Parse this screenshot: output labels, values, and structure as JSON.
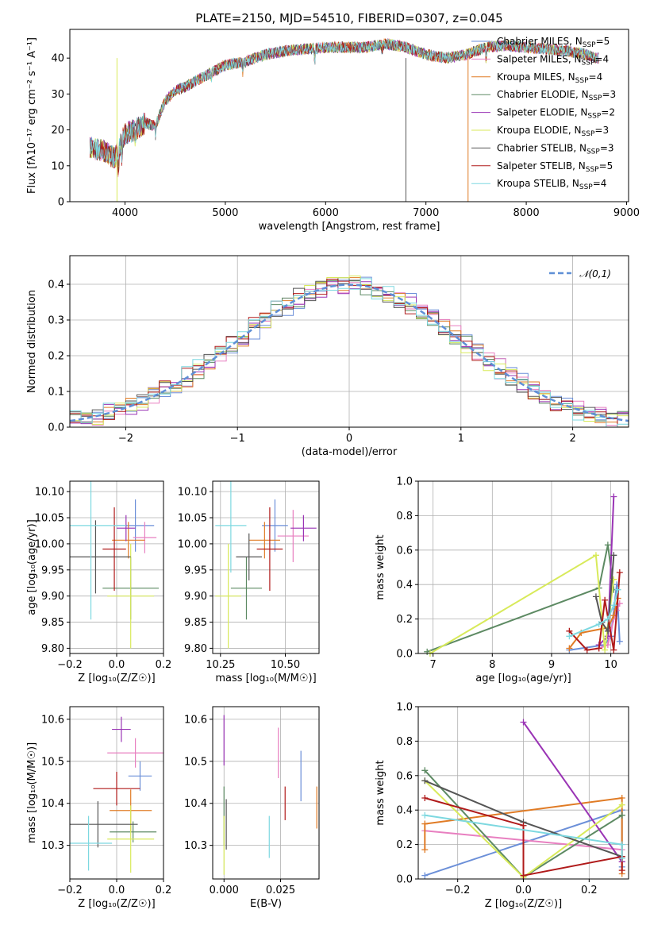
{
  "figure_title": "PLATE=2150, MJD=54510, FIBERID=0307, z=0.045",
  "series_styles": [
    {
      "name": "Chabrier MILES",
      "nssp": "5",
      "color": "#6b8fd8"
    },
    {
      "name": "Salpeter MILES",
      "nssp": "4",
      "color": "#e87fc0"
    },
    {
      "name": "Kroupa MILES",
      "nssp": "4",
      "color": "#e07b25"
    },
    {
      "name": "Chabrier ELODIE",
      "nssp": "3",
      "color": "#5d8a63"
    },
    {
      "name": "Salpeter ELODIE",
      "nssp": "2",
      "color": "#9a34b5"
    },
    {
      "name": "Kroupa ELODIE",
      "nssp": "3",
      "color": "#d8ea5a"
    },
    {
      "name": "Chabrier STELIB",
      "nssp": "3",
      "color": "#555555"
    },
    {
      "name": "Salpeter STELIB",
      "nssp": "5",
      "color": "#b01a1a"
    },
    {
      "name": "Kroupa STELIB",
      "nssp": "4",
      "color": "#7dd8e0"
    }
  ],
  "chart_data": [
    {
      "type": "line",
      "title": "PLATE=2150, MJD=54510, FIBERID=0307, z=0.045",
      "xlabel": "wavelength [Angstrom, rest frame]",
      "ylabel": "Flux [fλ10⁻¹⁷ erg cm⁻² s⁻¹ A⁻¹]",
      "xlim": [
        3450,
        9020
      ],
      "ylim": [
        0,
        48
      ],
      "xticks": [
        "4000",
        "5000",
        "6000",
        "7000",
        "8000",
        "9000"
      ],
      "yticks": [
        "0",
        "10",
        "20",
        "30",
        "40"
      ],
      "legend_position": "top-right",
      "legend": [
        "Chabrier MILES, NSSP=5",
        "Salpeter MILES, NSSP=4",
        "Kroupa MILES, NSSP=4",
        "Chabrier ELODIE, NSSP=3",
        "Salpeter ELODIE, NSSP=2",
        "Kroupa ELODIE, NSSP=3",
        "Chabrier STELIB, NSSP=3",
        "Salpeter STELIB, NSSP=5",
        "Kroupa STELIB, NSSP=4"
      ],
      "continuum": {
        "x": [
          3650,
          3800,
          3900,
          4000,
          4100,
          4200,
          4300,
          4400,
          4500,
          4600,
          4800,
          5000,
          5200,
          5400,
          5600,
          5800,
          6000,
          6200,
          6400,
          6600,
          6800,
          7000,
          7200,
          7400,
          7600,
          7800,
          8000,
          8200,
          8400,
          8600,
          8700
        ],
        "y": [
          15,
          14,
          12,
          19,
          20,
          22,
          21,
          28,
          31,
          32,
          35,
          38,
          39,
          41,
          42,
          42.5,
          43,
          43,
          43,
          44,
          43,
          41,
          40,
          41,
          43,
          43.5,
          43,
          42.5,
          42,
          41,
          40
        ]
      }
    },
    {
      "type": "line",
      "xlabel": "(data-model)/error",
      "ylabel": "Normed distribution",
      "xlim": [
        -2.5,
        2.5
      ],
      "ylim": [
        0,
        0.48
      ],
      "xticks": [
        "−2",
        "−1",
        "0",
        "1",
        "2"
      ],
      "yticks": [
        "0.0",
        "0.1",
        "0.2",
        "0.3",
        "0.4"
      ],
      "grid": true,
      "legend_position": "top-right",
      "legend": [
        "𝒩(0,1)"
      ],
      "gaussian": {
        "mean": 0,
        "sigma": 1
      }
    },
    {
      "type": "scatter",
      "xlabel": "Z [log₁₀(Z/Z☉)]",
      "ylabel": "age  [log₁₀(age/yr)]",
      "xlim": [
        -0.2,
        0.2
      ],
      "ylim": [
        9.79,
        10.12
      ],
      "xticks": [
        "−0.2",
        "0.0",
        "0.2"
      ],
      "yticks": [
        "9.80",
        "9.85",
        "9.90",
        "9.95",
        "10.00",
        "10.05",
        "10.10"
      ],
      "grid": true,
      "points": [
        {
          "x": 0.08,
          "y": 10.035,
          "xerr": 0.08,
          "yerr": 0.05
        },
        {
          "x": 0.12,
          "y": 10.012,
          "xerr": 0.05,
          "yerr": 0.03
        },
        {
          "x": 0.05,
          "y": 10.007,
          "xerr": 0.07,
          "yerr": 0.035
        },
        {
          "x": 0.06,
          "y": 9.915,
          "xerr": 0.12,
          "yerr": 0.06
        },
        {
          "x": 0.04,
          "y": 10.03,
          "xerr": 0.04,
          "yerr": 0.025
        },
        {
          "x": 0.06,
          "y": 9.9,
          "xerr": 0.1,
          "yerr": 0.1
        },
        {
          "x": -0.09,
          "y": 9.975,
          "xerr": 0.15,
          "yerr": 0.07
        },
        {
          "x": -0.01,
          "y": 9.99,
          "xerr": 0.05,
          "yerr": 0.08
        },
        {
          "x": -0.11,
          "y": 10.035,
          "xerr": 0.15,
          "yerr": 0.18
        }
      ]
    },
    {
      "type": "scatter",
      "xlabel": "mass [log₁₀(M/M☉)]",
      "xlim": [
        10.22,
        10.63
      ],
      "ylim": [
        9.79,
        10.12
      ],
      "xticks": [
        "10.25",
        "10.50"
      ],
      "yticks": [
        "9.80",
        "9.85",
        "9.90",
        "9.95",
        "10.00",
        "10.05",
        "10.10"
      ],
      "grid": true,
      "points": [
        {
          "x": 10.46,
          "y": 10.035,
          "xerr": 0.05,
          "yerr": 0.05
        },
        {
          "x": 10.53,
          "y": 10.015,
          "xerr": 0.06,
          "yerr": 0.05
        },
        {
          "x": 10.42,
          "y": 10.007,
          "xerr": 0.06,
          "yerr": 0.035
        },
        {
          "x": 10.35,
          "y": 9.915,
          "xerr": 0.06,
          "yerr": 0.06
        },
        {
          "x": 10.57,
          "y": 10.03,
          "xerr": 0.05,
          "yerr": 0.025
        },
        {
          "x": 10.28,
          "y": 9.9,
          "xerr": 0.05,
          "yerr": 0.1
        },
        {
          "x": 10.36,
          "y": 9.975,
          "xerr": 0.05,
          "yerr": 0.045
        },
        {
          "x": 10.44,
          "y": 9.99,
          "xerr": 0.05,
          "yerr": 0.08
        },
        {
          "x": 10.29,
          "y": 10.035,
          "xerr": 0.06,
          "yerr": 0.09
        }
      ]
    },
    {
      "type": "line",
      "xlabel": "age  [log₁₀(age/yr)]",
      "ylabel": "mass weight",
      "xlim": [
        6.75,
        10.3
      ],
      "ylim": [
        0,
        1.0
      ],
      "xticks": [
        "7",
        "8",
        "9",
        "10"
      ],
      "yticks": [
        "0.0",
        "0.2",
        "0.4",
        "0.6",
        "0.8",
        "1.0"
      ],
      "grid": true,
      "lines": [
        {
          "x": [
            9.3,
            9.9,
            10.0,
            10.1,
            10.15
          ],
          "y": [
            0.02,
            0.05,
            0.1,
            0.4,
            0.07
          ]
        },
        {
          "x": [
            9.8,
            9.95,
            10.05,
            10.1,
            10.15
          ],
          "y": [
            0.03,
            0.05,
            0.2,
            0.25,
            0.29
          ]
        },
        {
          "x": [
            9.3,
            9.5,
            9.95,
            10.05,
            10.12
          ],
          "y": [
            0.03,
            0.12,
            0.15,
            0.22,
            0.32
          ]
        },
        {
          "x": [
            6.9,
            9.8,
            9.95,
            10.05
          ],
          "y": [
            0.01,
            0.38,
            0.63,
            0.37
          ]
        },
        {
          "x": [
            9.8,
            9.95,
            10.05
          ],
          "y": [
            0.05,
            0.1,
            0.91
          ]
        },
        {
          "x": [
            6.95,
            9.75,
            9.9,
            10.05
          ],
          "y": [
            0.0,
            0.57,
            0.02,
            0.43
          ]
        },
        {
          "x": [
            9.75,
            9.85,
            9.95,
            10.05
          ],
          "y": [
            0.33,
            0.18,
            0.13,
            0.57
          ]
        },
        {
          "x": [
            9.3,
            9.6,
            9.8,
            9.9,
            10.05,
            10.15
          ],
          "y": [
            0.13,
            0.02,
            0.03,
            0.31,
            0.02,
            0.47
          ]
        },
        {
          "x": [
            9.3,
            9.8,
            9.95,
            10.05,
            10.12
          ],
          "y": [
            0.1,
            0.17,
            0.2,
            0.28,
            0.37
          ]
        }
      ]
    },
    {
      "type": "scatter",
      "xlabel": "Z [log₁₀(Z/Z☉)]",
      "ylabel": "mass [log₁₀(M/M☉)]",
      "xlim": [
        -0.2,
        0.2
      ],
      "ylim": [
        10.22,
        10.63
      ],
      "xticks": [
        "−0.2",
        "0.0",
        "0.2"
      ],
      "yticks": [
        "10.3",
        "10.4",
        "10.5",
        "10.6"
      ],
      "grid": true,
      "points": [
        {
          "x": 0.1,
          "y": 10.465,
          "xerr": 0.05,
          "yerr": 0.035
        },
        {
          "x": 0.08,
          "y": 10.52,
          "xerr": 0.12,
          "yerr": 0.035
        },
        {
          "x": 0.06,
          "y": 10.383,
          "xerr": 0.09,
          "yerr": 0.05
        },
        {
          "x": 0.07,
          "y": 10.332,
          "xerr": 0.1,
          "yerr": 0.025
        },
        {
          "x": 0.02,
          "y": 10.576,
          "xerr": 0.04,
          "yerr": 0.03
        },
        {
          "x": 0.06,
          "y": 10.315,
          "xerr": 0.1,
          "yerr": 0.08
        },
        {
          "x": -0.08,
          "y": 10.35,
          "xerr": 0.17,
          "yerr": 0.055
        },
        {
          "x": 0.0,
          "y": 10.435,
          "xerr": 0.1,
          "yerr": 0.04
        },
        {
          "x": -0.12,
          "y": 10.305,
          "xerr": 0.1,
          "yerr": 0.065
        }
      ]
    },
    {
      "type": "scatter",
      "xlabel": "E(B-V)",
      "xlim": [
        -0.005,
        0.042
      ],
      "ylim": [
        10.22,
        10.63
      ],
      "xticks": [
        "0.000",
        "0.025"
      ],
      "yticks": [
        "10.3",
        "10.4",
        "10.5",
        "10.6"
      ],
      "grid": true,
      "points": [
        {
          "x": 0.034,
          "y": 10.465,
          "xerr": 0,
          "yerr": 0.06
        },
        {
          "x": 0.024,
          "y": 10.52,
          "xerr": 0,
          "yerr": 0.06
        },
        {
          "x": 0.041,
          "y": 10.39,
          "xerr": 0,
          "yerr": 0.05
        },
        {
          "x": 0.0,
          "y": 10.37,
          "xerr": 0,
          "yerr": 0.07
        },
        {
          "x": 0.0,
          "y": 10.55,
          "xerr": 0,
          "yerr": 0.06
        },
        {
          "x": 0.0,
          "y": 10.3,
          "xerr": 0,
          "yerr": 0.07
        },
        {
          "x": 0.001,
          "y": 10.35,
          "xerr": 0,
          "yerr": 0.06
        },
        {
          "x": 0.027,
          "y": 10.4,
          "xerr": 0,
          "yerr": 0.04
        },
        {
          "x": 0.02,
          "y": 10.32,
          "xerr": 0,
          "yerr": 0.05
        }
      ]
    },
    {
      "type": "line",
      "xlabel": "Z [log₁₀(Z/Z☉)]",
      "ylabel": "mass weight",
      "xlim": [
        -0.32,
        0.32
      ],
      "ylim": [
        0,
        1.0
      ],
      "xticks": [
        "−0.2",
        "0.0",
        "0.2"
      ],
      "yticks": [
        "0.0",
        "0.2",
        "0.4",
        "0.6",
        "0.8",
        "1.0"
      ],
      "grid": true,
      "lines": [
        {
          "x": [
            -0.3,
            0.3,
            0.3
          ],
          "y": [
            0.02,
            0.4,
            0.07
          ]
        },
        {
          "x": [
            -0.3,
            0.3,
            0.3
          ],
          "y": [
            0.28,
            0.17,
            0.1
          ]
        },
        {
          "x": [
            -0.3,
            -0.3,
            0.3,
            0.3
          ],
          "y": [
            0.17,
            0.32,
            0.47,
            0.03
          ]
        },
        {
          "x": [
            -0.3,
            0.0,
            0.3,
            0.3
          ],
          "y": [
            0.63,
            0.01,
            0.37,
            0.37
          ]
        },
        {
          "x": [
            0.0,
            0.3
          ],
          "y": [
            0.91,
            0.1
          ]
        },
        {
          "x": [
            -0.3,
            0.0,
            0.3
          ],
          "y": [
            0.57,
            0.01,
            0.43
          ]
        },
        {
          "x": [
            -0.3,
            0.0,
            0.3
          ],
          "y": [
            0.57,
            0.33,
            0.13
          ]
        },
        {
          "x": [
            -0.3,
            0.0,
            0.0,
            0.3,
            0.3
          ],
          "y": [
            0.47,
            0.31,
            0.02,
            0.13,
            0.05
          ]
        },
        {
          "x": [
            -0.3,
            0.3,
            0.3
          ],
          "y": [
            0.37,
            0.2,
            0.12
          ]
        }
      ]
    }
  ]
}
